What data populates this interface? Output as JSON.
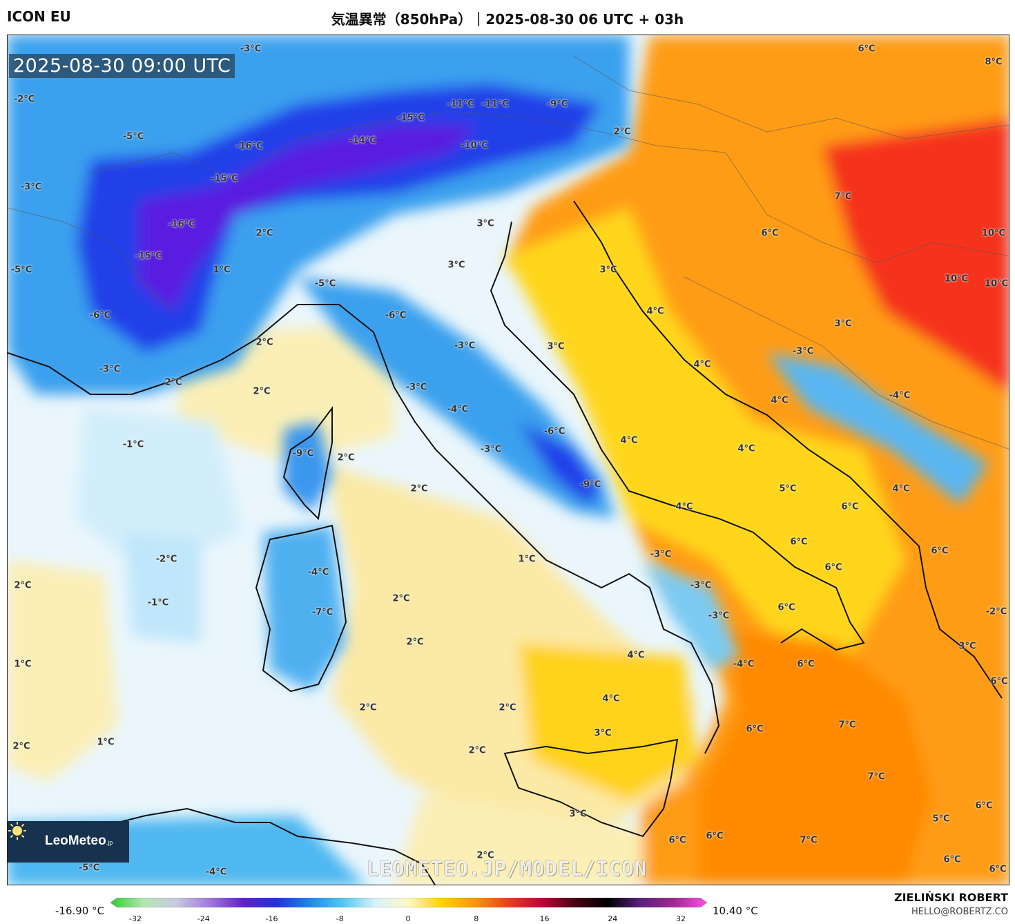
{
  "header": {
    "model": "ICON EU",
    "title": "気温異常（850hPa）｜2025-08-30 06 UTC + 03h"
  },
  "map": {
    "timestamp": "2025-08-30 09:00 UTC",
    "watermark": "LEOMETEO.JP/MODEL/ICON",
    "colors": {
      "strong_cold": "#5a1ee0",
      "cold": "#2040e8",
      "cool": "#3aa0ee",
      "slight_cool": "#bfe6fa",
      "neutral": "#ffffff",
      "slight_warm": "#fbefb6",
      "warm": "#ffd21a",
      "hot": "#ff8c00",
      "very_hot": "#f21e1e"
    },
    "labels": [
      {
        "text": "-3°C"
      },
      {
        "text": "6°C"
      },
      {
        "text": "8°C"
      },
      {
        "text": "-2°C"
      },
      {
        "text": "-11°C"
      },
      {
        "text": "-11°C"
      },
      {
        "text": "-9°C"
      },
      {
        "text": "-15°C"
      },
      {
        "text": "-5°C"
      },
      {
        "text": "-14°C"
      },
      {
        "text": "-16°C"
      },
      {
        "text": "-10°C"
      },
      {
        "text": "2°C"
      },
      {
        "text": "-15°C"
      },
      {
        "text": "-3°C"
      },
      {
        "text": "7°C"
      },
      {
        "text": "-16°C"
      },
      {
        "text": "3°C"
      },
      {
        "text": "2°C"
      },
      {
        "text": "6°C"
      },
      {
        "text": "10°C"
      },
      {
        "text": "-15°C"
      },
      {
        "text": "1°C"
      },
      {
        "text": "3°C"
      },
      {
        "text": "3°C"
      },
      {
        "text": "-5°C"
      },
      {
        "text": "-5°C"
      },
      {
        "text": "10°C"
      },
      {
        "text": "10°C"
      },
      {
        "text": "-6°C"
      },
      {
        "text": "-6°C"
      },
      {
        "text": "4°C"
      },
      {
        "text": "2°C"
      },
      {
        "text": "3°C"
      },
      {
        "text": "-3°C"
      },
      {
        "text": "3°C"
      },
      {
        "text": "4°C"
      },
      {
        "text": "-3°C"
      },
      {
        "text": "2°C"
      },
      {
        "text": "-3°C"
      },
      {
        "text": "2°C"
      },
      {
        "text": "-3°C"
      },
      {
        "text": "4°C"
      },
      {
        "text": "-4°C"
      },
      {
        "text": "-1°C"
      },
      {
        "text": "-4°C"
      },
      {
        "text": "-9°C"
      },
      {
        "text": "2°C"
      },
      {
        "text": "-6°C"
      },
      {
        "text": "4°C"
      },
      {
        "text": "4°C"
      },
      {
        "text": "-3°C"
      },
      {
        "text": "2°C"
      },
      {
        "text": "-9°C"
      },
      {
        "text": "5°C"
      },
      {
        "text": "4°C"
      },
      {
        "text": "4°C"
      },
      {
        "text": "6°C"
      },
      {
        "text": "-2°C"
      },
      {
        "text": "1°C"
      },
      {
        "text": "6°C"
      },
      {
        "text": "-3°C"
      },
      {
        "text": "-4°C"
      },
      {
        "text": "6°C"
      },
      {
        "text": "6°C"
      },
      {
        "text": "2°C"
      },
      {
        "text": "-3°C"
      },
      {
        "text": "2°C"
      },
      {
        "text": "6°C"
      },
      {
        "text": "-1°C"
      },
      {
        "text": "-7°C"
      },
      {
        "text": "-2°C"
      },
      {
        "text": "-3°C"
      },
      {
        "text": "2°C"
      },
      {
        "text": "4°C"
      },
      {
        "text": "6°C"
      },
      {
        "text": "1°C"
      },
      {
        "text": "-4°C"
      },
      {
        "text": "3°C"
      },
      {
        "text": "6°C"
      },
      {
        "text": "4°C"
      },
      {
        "text": "2°C"
      },
      {
        "text": "2°C"
      },
      {
        "text": "7°C"
      },
      {
        "text": "6°C"
      },
      {
        "text": "1°C"
      },
      {
        "text": "3°C"
      },
      {
        "text": "2°C"
      },
      {
        "text": "2°C"
      },
      {
        "text": "7°C"
      },
      {
        "text": "3°C"
      },
      {
        "text": "6°C"
      },
      {
        "text": "5°C"
      },
      {
        "text": "6°C"
      },
      {
        "text": "6°C"
      },
      {
        "text": "2°C"
      },
      {
        "text": "7°C"
      },
      {
        "text": "-5°C"
      },
      {
        "text": "-4°C"
      },
      {
        "text": "6°C"
      },
      {
        "text": "6°C"
      }
    ]
  },
  "logo": {
    "brand_main": "LeoMeteo",
    "brand_suffix": ".jp"
  },
  "colorbar": {
    "min_label": "-16.90 °C",
    "max_label": "10.40 °C",
    "ticks": [
      "-32",
      "-24",
      "-16",
      "-8",
      "0",
      "8",
      "16",
      "24",
      "32"
    ],
    "stops": [
      "#2cd02c",
      "#b4e6b4",
      "#c8c8e0",
      "#a078dc",
      "#6020d0",
      "#2030e0",
      "#1c86ee",
      "#50c8f0",
      "#d8f2fb",
      "#fff8c0",
      "#ffd200",
      "#ff9600",
      "#f03c1e",
      "#c8003c",
      "#4b0014",
      "#000000",
      "#5a2080",
      "#a02890",
      "#ff50e6"
    ]
  },
  "credit": {
    "name": "ZIELIŃSKI ROBERT",
    "email": "HELLO@ROBERTZ.CO"
  }
}
